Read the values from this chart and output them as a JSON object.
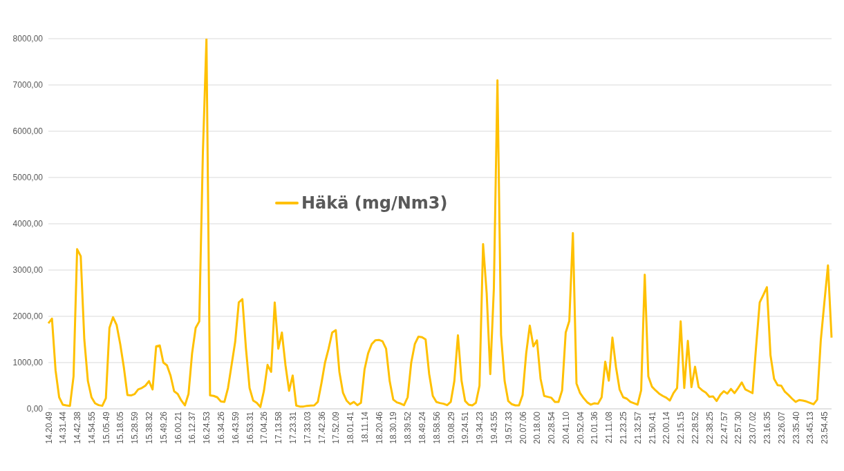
{
  "chart_data": {
    "type": "line",
    "categories": [
      "14.20.49",
      null,
      null,
      null,
      "14.31.44",
      null,
      null,
      null,
      "14.42.38",
      null,
      null,
      null,
      "14.54.55",
      null,
      null,
      null,
      "15.05.49",
      null,
      null,
      null,
      "15.18.05",
      null,
      null,
      null,
      "15.28.59",
      null,
      null,
      null,
      "15.38.32",
      null,
      null,
      null,
      "15.49.26",
      null,
      null,
      null,
      "16.00.21",
      null,
      null,
      null,
      "16.12.37",
      null,
      null,
      null,
      "16.24.53",
      null,
      null,
      null,
      "16.34.26",
      null,
      null,
      null,
      "16.43.59",
      null,
      null,
      null,
      "16.53.31",
      null,
      null,
      null,
      "17.04.26",
      null,
      null,
      null,
      "17.13.58",
      null,
      null,
      null,
      "17.23.31",
      null,
      null,
      null,
      "17.33.03",
      null,
      null,
      null,
      "17.42.36",
      null,
      null,
      null,
      "17.52.09",
      null,
      null,
      null,
      "18.01.41",
      null,
      null,
      null,
      "18.11.14",
      null,
      null,
      null,
      "18.20.46",
      null,
      null,
      null,
      "18.30.19",
      null,
      null,
      null,
      "18.39.52",
      null,
      null,
      null,
      "18.49.24",
      null,
      null,
      null,
      "18.58.56",
      null,
      null,
      null,
      "19.08.29",
      null,
      null,
      null,
      "19.24.51",
      null,
      null,
      null,
      "19.34.23",
      null,
      null,
      null,
      "19.43.55",
      null,
      null,
      null,
      "19.57.33",
      null,
      null,
      null,
      "20.07.06",
      null,
      null,
      null,
      "20.18.00",
      null,
      null,
      null,
      "20.28.54",
      null,
      null,
      null,
      "20.41.10",
      null,
      null,
      null,
      "20.52.04",
      null,
      null,
      null,
      "21.01.36",
      null,
      null,
      null,
      "21.11.08",
      null,
      null,
      null,
      "21.23.25",
      null,
      null,
      null,
      "21.32.57",
      null,
      null,
      null,
      "21.50.41",
      null,
      null,
      null,
      "22.00.14",
      null,
      null,
      null,
      "22.15.15",
      null,
      null,
      null,
      "22.28.52",
      null,
      null,
      null,
      "22.38.25",
      null,
      null,
      null,
      "22.47.57",
      null,
      null,
      null,
      "22.57.30",
      null,
      null,
      null,
      "23.07.02",
      null,
      null,
      null,
      "23.16.35",
      null,
      null,
      null,
      "23.26.07",
      null,
      null,
      null,
      "23.35.40",
      null,
      null,
      null,
      "23.45.13",
      null,
      null,
      null,
      "23.54.45",
      null,
      null
    ],
    "series": [
      {
        "name": "Häkä (mg/Nm3)",
        "color": "#ffc000",
        "values": [
          1850,
          1950,
          830,
          250,
          90,
          75,
          65,
          700,
          3450,
          3300,
          1500,
          600,
          250,
          120,
          80,
          65,
          230,
          1750,
          1980,
          1810,
          1400,
          900,
          300,
          290,
          320,
          420,
          450,
          500,
          600,
          420,
          1350,
          1370,
          1000,
          940,
          720,
          380,
          320,
          180,
          75,
          320,
          1200,
          1750,
          1890,
          5520,
          8000,
          290,
          280,
          250,
          160,
          150,
          450,
          950,
          1450,
          2300,
          2370,
          1300,
          450,
          180,
          130,
          40,
          390,
          950,
          800,
          2300,
          1300,
          1650,
          940,
          390,
          720,
          70,
          50,
          50,
          65,
          70,
          75,
          150,
          550,
          1000,
          1300,
          1650,
          1700,
          800,
          350,
          180,
          100,
          150,
          80,
          130,
          850,
          1200,
          1400,
          1480,
          1490,
          1460,
          1300,
          600,
          200,
          140,
          115,
          80,
          250,
          1000,
          1400,
          1560,
          1550,
          1500,
          750,
          280,
          150,
          125,
          110,
          80,
          150,
          600,
          1590,
          610,
          170,
          90,
          75,
          130,
          500,
          3560,
          2500,
          750,
          2600,
          7100,
          1600,
          600,
          170,
          100,
          75,
          75,
          300,
          1200,
          1800,
          1350,
          1480,
          650,
          280,
          260,
          240,
          150,
          150,
          400,
          1650,
          1900,
          3800,
          550,
          340,
          230,
          140,
          90,
          120,
          110,
          250,
          1020,
          610,
          1540,
          900,
          420,
          250,
          220,
          150,
          120,
          90,
          400,
          2900,
          700,
          480,
          400,
          330,
          280,
          240,
          180,
          340,
          450,
          1890,
          450,
          1470,
          470,
          910,
          470,
          400,
          350,
          260,
          270,
          170,
          300,
          380,
          330,
          430,
          340,
          450,
          570,
          420,
          380,
          340,
          1350,
          2300,
          2460,
          2630,
          1160,
          650,
          510,
          500,
          370,
          300,
          220,
          150,
          190,
          180,
          160,
          130,
          100,
          200,
          1480,
          2300,
          3100,
          1540
        ]
      }
    ],
    "ylim": [
      0,
      8000
    ],
    "yticks": [
      {
        "value": 0,
        "label": "0,00"
      },
      {
        "value": 1000,
        "label": "1000,00"
      },
      {
        "value": 2000,
        "label": "2000,00"
      },
      {
        "value": 3000,
        "label": "3000,00"
      },
      {
        "value": 4000,
        "label": "4000,00"
      },
      {
        "value": 5000,
        "label": "5000,00"
      },
      {
        "value": 6000,
        "label": "6000,00"
      },
      {
        "value": 7000,
        "label": "7000,00"
      },
      {
        "value": 8000,
        "label": "8000,00"
      }
    ],
    "grid": "y",
    "legend": "center",
    "line_style": "solid"
  }
}
